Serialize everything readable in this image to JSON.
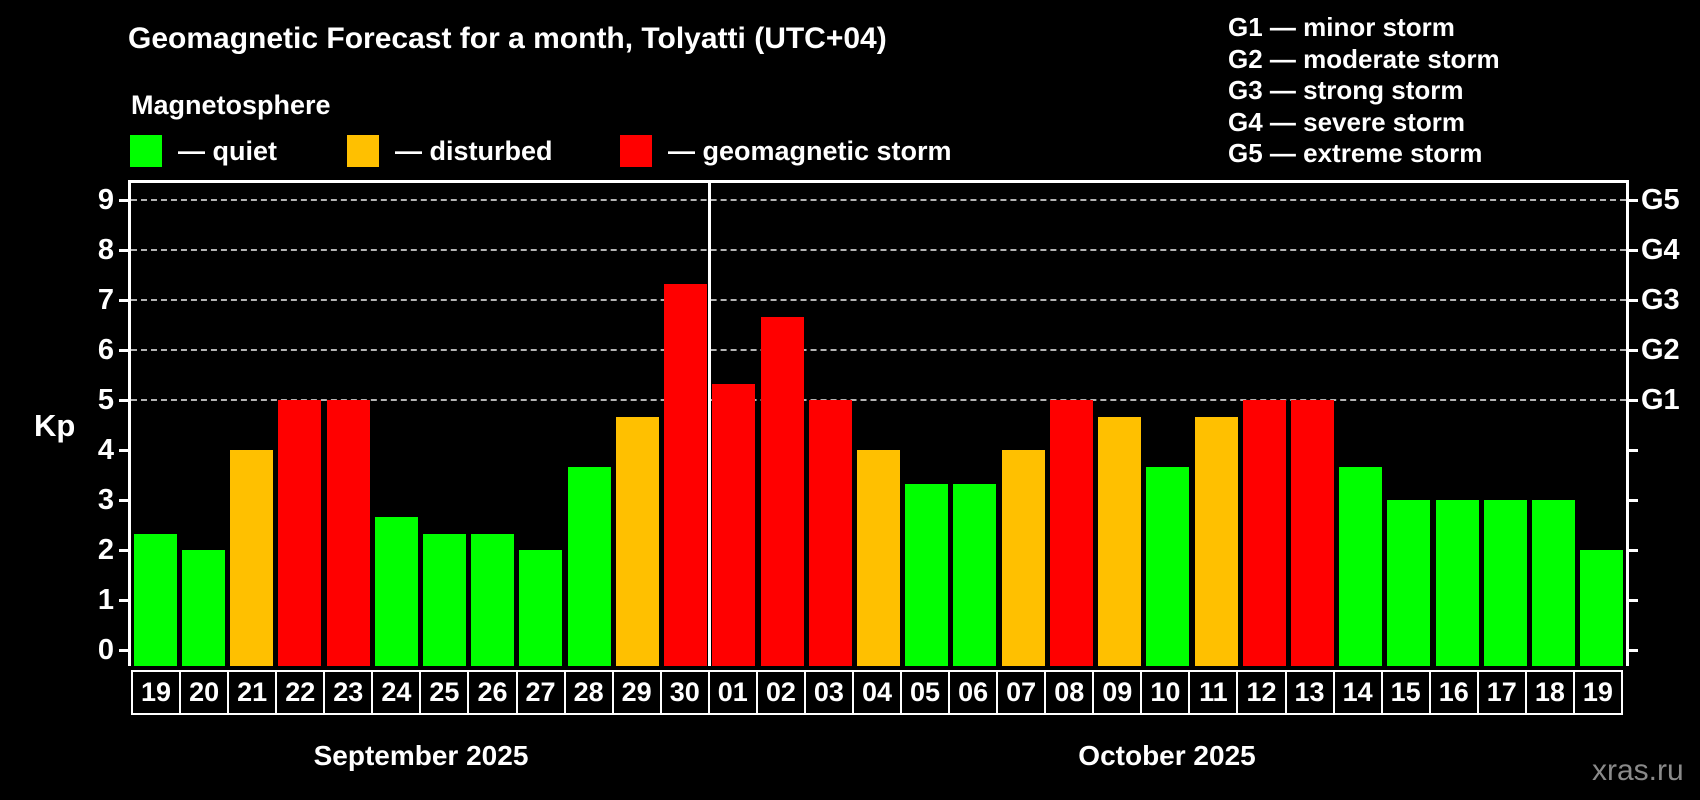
{
  "title": "Geomagnetic Forecast for a month, Tolyatti (UTC+04)",
  "subtitle": "Magnetosphere",
  "legend": {
    "quiet": "— quiet",
    "disturbed": "— disturbed",
    "storm": "— geomagnetic storm"
  },
  "g_legend": [
    "G1 — minor storm",
    "G2 — moderate storm",
    "G3 — strong storm",
    "G4 — severe storm",
    "G5 — extreme storm"
  ],
  "watermark": "xras.ru",
  "colors": {
    "quiet": "#00ff00",
    "disturbed": "#ffc000",
    "storm": "#ff0000",
    "axis": "#ffffff",
    "grid": "#b3b3b3",
    "watermark": "#8a8a8a",
    "background": "#000000"
  },
  "chart_data": {
    "type": "bar",
    "title": "Geomagnetic Forecast for a month, Tolyatti (UTC+04)",
    "ylabel": "Kp",
    "ylim": [
      0,
      9
    ],
    "y_ticks": [
      0,
      1,
      2,
      3,
      4,
      5,
      6,
      7,
      8,
      9
    ],
    "gridlines": [
      5,
      6,
      7,
      8,
      9
    ],
    "grid_on": true,
    "right_axis_labels": [
      {
        "value": 5,
        "label": "G1"
      },
      {
        "value": 6,
        "label": "G2"
      },
      {
        "value": 7,
        "label": "G3"
      },
      {
        "value": 8,
        "label": "G4"
      },
      {
        "value": 9,
        "label": "G5"
      }
    ],
    "months": [
      {
        "label": "September 2025",
        "start_index": 0,
        "count": 12
      },
      {
        "label": "October 2025",
        "start_index": 12,
        "count": 19
      }
    ],
    "bars": [
      {
        "month": "September",
        "day": "19",
        "kp": 2.33,
        "status": "quiet"
      },
      {
        "month": "September",
        "day": "20",
        "kp": 2.0,
        "status": "quiet"
      },
      {
        "month": "September",
        "day": "21",
        "kp": 4.0,
        "status": "disturbed"
      },
      {
        "month": "September",
        "day": "22",
        "kp": 5.0,
        "status": "storm"
      },
      {
        "month": "September",
        "day": "23",
        "kp": 5.0,
        "status": "storm"
      },
      {
        "month": "September",
        "day": "24",
        "kp": 2.67,
        "status": "quiet"
      },
      {
        "month": "September",
        "day": "25",
        "kp": 2.33,
        "status": "quiet"
      },
      {
        "month": "September",
        "day": "26",
        "kp": 2.33,
        "status": "quiet"
      },
      {
        "month": "September",
        "day": "27",
        "kp": 2.0,
        "status": "quiet"
      },
      {
        "month": "September",
        "day": "28",
        "kp": 3.67,
        "status": "quiet"
      },
      {
        "month": "September",
        "day": "29",
        "kp": 4.67,
        "status": "disturbed"
      },
      {
        "month": "September",
        "day": "30",
        "kp": 7.33,
        "status": "storm"
      },
      {
        "month": "October",
        "day": "01",
        "kp": 5.33,
        "status": "storm"
      },
      {
        "month": "October",
        "day": "02",
        "kp": 6.67,
        "status": "storm"
      },
      {
        "month": "October",
        "day": "03",
        "kp": 5.0,
        "status": "storm"
      },
      {
        "month": "October",
        "day": "04",
        "kp": 4.0,
        "status": "disturbed"
      },
      {
        "month": "October",
        "day": "05",
        "kp": 3.33,
        "status": "quiet"
      },
      {
        "month": "October",
        "day": "06",
        "kp": 3.33,
        "status": "quiet"
      },
      {
        "month": "October",
        "day": "07",
        "kp": 4.0,
        "status": "disturbed"
      },
      {
        "month": "October",
        "day": "08",
        "kp": 5.0,
        "status": "storm"
      },
      {
        "month": "October",
        "day": "09",
        "kp": 4.67,
        "status": "disturbed"
      },
      {
        "month": "October",
        "day": "10",
        "kp": 3.67,
        "status": "quiet"
      },
      {
        "month": "October",
        "day": "11",
        "kp": 4.67,
        "status": "disturbed"
      },
      {
        "month": "October",
        "day": "12",
        "kp": 5.0,
        "status": "storm"
      },
      {
        "month": "October",
        "day": "13",
        "kp": 5.0,
        "status": "storm"
      },
      {
        "month": "October",
        "day": "14",
        "kp": 3.67,
        "status": "quiet"
      },
      {
        "month": "October",
        "day": "15",
        "kp": 3.0,
        "status": "quiet"
      },
      {
        "month": "October",
        "day": "16",
        "kp": 3.0,
        "status": "quiet"
      },
      {
        "month": "October",
        "day": "17",
        "kp": 3.0,
        "status": "quiet"
      },
      {
        "month": "October",
        "day": "18",
        "kp": 3.0,
        "status": "quiet"
      },
      {
        "month": "October",
        "day": "19",
        "kp": 2.0,
        "status": "quiet"
      }
    ]
  }
}
